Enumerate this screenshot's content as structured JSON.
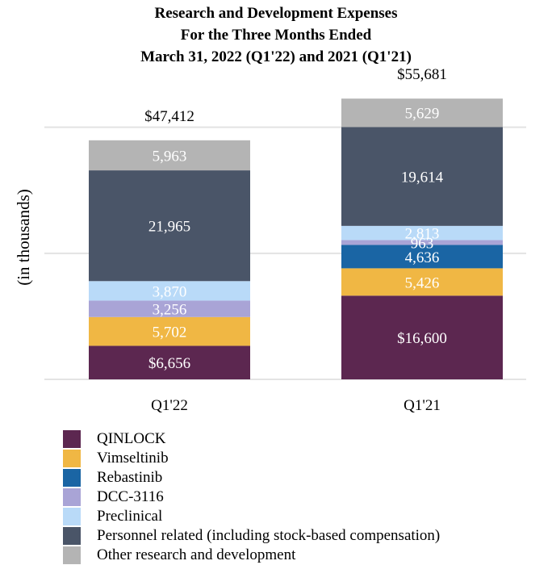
{
  "chart_data": {
    "type": "bar",
    "stacked": true,
    "title": [
      "Research and Development Expenses",
      "For the Three Months Ended",
      "March 31, 2022 (Q1'22) and 2021 (Q1'21)"
    ],
    "xlabel": "",
    "ylabel": "(in thousands)",
    "ylim": [
      0,
      50000
    ],
    "grid": true,
    "gridlines": [
      0,
      25000,
      50000
    ],
    "categories": [
      "Q1'22",
      "Q1'21"
    ],
    "totals": [
      "$47,412",
      "$55,681"
    ],
    "total_values": [
      47412,
      55681
    ],
    "series": [
      {
        "name": "QINLOCK",
        "color": "#5c2750",
        "values": [
          6656,
          16600
        ],
        "labels": [
          "$6,656",
          "$16,600"
        ]
      },
      {
        "name": "Vimseltinib",
        "color": "#f0b744",
        "values": [
          5702,
          5426
        ],
        "labels": [
          "5,702",
          "5,426"
        ]
      },
      {
        "name": "Rebastinib",
        "color": "#1a65a4",
        "values": [
          0,
          4636
        ],
        "labels": [
          "",
          "4,636"
        ]
      },
      {
        "name": "DCC-3116",
        "color": "#a9a4d6",
        "values": [
          3256,
          963
        ],
        "labels": [
          "3,256",
          "963"
        ]
      },
      {
        "name": "Preclinical",
        "color": "#b9daf8",
        "values": [
          3870,
          2813
        ],
        "labels": [
          "3,870",
          "2,813"
        ]
      },
      {
        "name": "Personnel related (including stock-based compensation)",
        "color": "#4a5568",
        "values": [
          21965,
          19614
        ],
        "labels": [
          "21,965",
          "19,614"
        ]
      },
      {
        "name": "Other research and development",
        "color": "#b4b4b4",
        "values": [
          5963,
          5629
        ],
        "labels": [
          "5,963",
          "5,629"
        ]
      }
    ],
    "legend": "bottom-left"
  }
}
